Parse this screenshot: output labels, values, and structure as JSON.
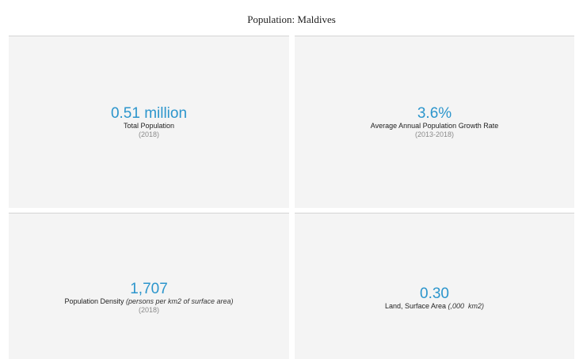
{
  "title": "Population: Maldives",
  "accent_color": "#2b95cc",
  "tiles": [
    {
      "value": "0.51 million",
      "label": "Total Population",
      "label_note": "",
      "period": "(2018)"
    },
    {
      "value": "3.6%",
      "label": "Average Annual Population Growth Rate",
      "label_note": "",
      "period": "(2013-2018)"
    },
    {
      "value": "1,707",
      "label": "Population Density",
      "label_note": "(persons per km2 of surface area)",
      "period": "(2018)"
    },
    {
      "value": "0.30",
      "label": "Land, Surface Area",
      "label_note": "(,000  km2)",
      "period": ""
    }
  ]
}
